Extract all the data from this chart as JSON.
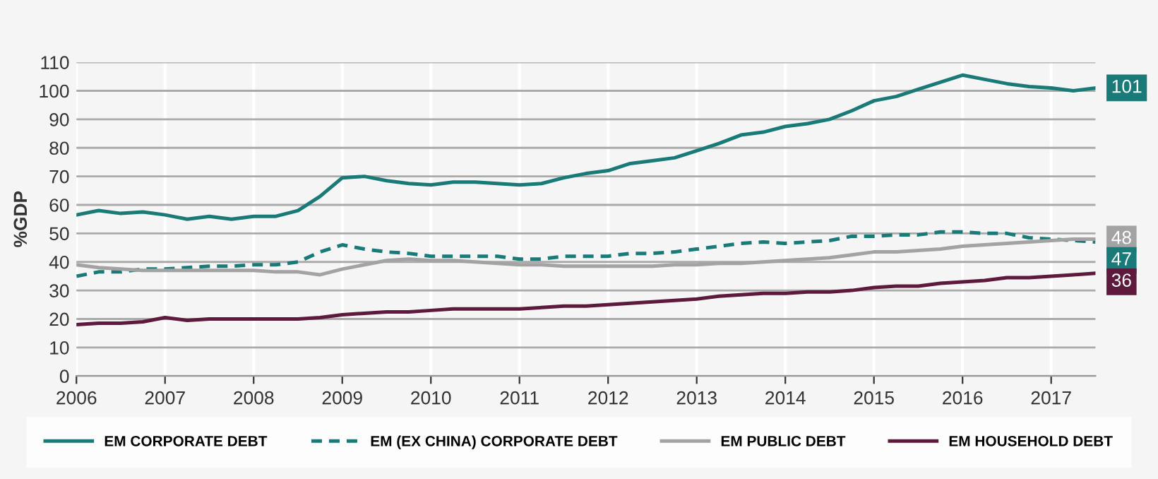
{
  "chart_data": {
    "type": "line",
    "ylabel": "%GDP",
    "x": [
      2006,
      2006.25,
      2006.5,
      2006.75,
      2007,
      2007.25,
      2007.5,
      2007.75,
      2008,
      2008.25,
      2008.5,
      2008.75,
      2009,
      2009.25,
      2009.5,
      2009.75,
      2010,
      2010.25,
      2010.5,
      2010.75,
      2011,
      2011.25,
      2011.5,
      2011.75,
      2012,
      2012.25,
      2012.5,
      2012.75,
      2013,
      2013.25,
      2013.5,
      2013.75,
      2014,
      2014.25,
      2014.5,
      2014.75,
      2015,
      2015.25,
      2015.5,
      2015.75,
      2016,
      2016.25,
      2016.5,
      2016.75,
      2017,
      2017.25,
      2017.5
    ],
    "series": [
      {
        "name": "EM CORPORATE DEBT",
        "color": "#1a7a78",
        "line_style": "solid",
        "values": [
          56.5,
          58,
          57,
          57.5,
          56.5,
          55,
          56,
          55,
          56,
          56,
          58,
          63,
          69.5,
          70,
          68.5,
          67.5,
          67,
          68,
          68,
          67.5,
          67,
          67.5,
          69.5,
          71,
          72,
          74.5,
          75.5,
          76.5,
          79,
          81.5,
          84.5,
          85.5,
          87.5,
          88.5,
          90,
          93,
          96.5,
          98,
          100.5,
          103,
          105.5,
          104,
          102.5,
          101.5,
          101,
          100,
          101
        ],
        "value_labels": [
          null,
          null,
          null,
          null,
          null,
          null,
          null,
          null,
          null,
          null,
          null,
          null,
          null,
          null,
          null,
          null,
          null,
          null,
          null,
          null,
          null,
          null,
          null,
          null,
          null,
          null,
          null,
          null,
          null,
          null,
          null,
          null,
          null,
          null,
          null,
          null,
          null,
          null,
          null,
          null,
          null,
          null,
          null,
          null,
          null,
          null,
          "101"
        ]
      },
      {
        "name": "EM (EX CHINA) CORPORATE DEBT",
        "color": "#1a7a78",
        "line_style": "dashed",
        "values": [
          35,
          36.5,
          36.5,
          37.5,
          37.5,
          38,
          38.5,
          38.5,
          39,
          39,
          40,
          43.5,
          46,
          44.5,
          43.5,
          43,
          42,
          42,
          42,
          42,
          41,
          41,
          42,
          42,
          42,
          43,
          43,
          43.5,
          44.5,
          45.5,
          46.5,
          47,
          46.5,
          47,
          47.5,
          49,
          49,
          49.5,
          49.5,
          50.5,
          50.5,
          50,
          50,
          48.5,
          48,
          47.5,
          47
        ],
        "value_labels": [
          null,
          null,
          null,
          null,
          null,
          null,
          null,
          null,
          null,
          null,
          null,
          null,
          null,
          null,
          null,
          null,
          null,
          null,
          null,
          null,
          null,
          null,
          null,
          null,
          null,
          null,
          null,
          null,
          null,
          null,
          null,
          null,
          null,
          null,
          null,
          null,
          null,
          null,
          null,
          null,
          null,
          null,
          null,
          null,
          null,
          null,
          "47"
        ]
      },
      {
        "name": "EM PUBLIC DEBT",
        "color": "#a3a3a3",
        "line_style": "solid",
        "values": [
          39,
          38,
          37.5,
          37,
          37,
          37,
          37,
          37,
          37,
          36.5,
          36.5,
          35.5,
          37.5,
          39,
          40.5,
          41,
          40.5,
          40.5,
          40,
          39.5,
          39,
          39,
          38.5,
          38.5,
          38.5,
          38.5,
          38.5,
          39,
          39,
          39.5,
          39.5,
          40,
          40.5,
          41,
          41.5,
          42.5,
          43.5,
          43.5,
          44,
          44.5,
          45.5,
          46,
          46.5,
          47,
          47.5,
          48,
          48
        ],
        "value_labels": [
          null,
          null,
          null,
          null,
          null,
          null,
          null,
          null,
          null,
          null,
          null,
          null,
          null,
          null,
          null,
          null,
          null,
          null,
          null,
          null,
          null,
          null,
          null,
          null,
          null,
          null,
          null,
          null,
          null,
          null,
          null,
          null,
          null,
          null,
          null,
          null,
          null,
          null,
          null,
          null,
          null,
          null,
          null,
          null,
          null,
          null,
          "48"
        ]
      },
      {
        "name": "EM HOUSEHOLD DEBT",
        "color": "#5e1a3c",
        "line_style": "solid",
        "values": [
          18,
          18.5,
          18.5,
          19,
          20.5,
          19.5,
          20,
          20,
          20,
          20,
          20,
          20.5,
          21.5,
          22,
          22.5,
          22.5,
          23,
          23.5,
          23.5,
          23.5,
          23.5,
          24,
          24.5,
          24.5,
          25,
          25.5,
          26,
          26.5,
          27,
          28,
          28.5,
          29,
          29,
          29.5,
          29.5,
          30,
          31,
          31.5,
          31.5,
          32.5,
          33,
          33.5,
          34.5,
          34.5,
          35,
          35.5,
          36
        ],
        "value_labels": [
          null,
          null,
          null,
          null,
          null,
          null,
          null,
          null,
          null,
          null,
          null,
          null,
          null,
          null,
          null,
          null,
          null,
          null,
          null,
          null,
          null,
          null,
          null,
          null,
          null,
          null,
          null,
          null,
          null,
          null,
          null,
          null,
          null,
          null,
          null,
          null,
          null,
          null,
          null,
          null,
          null,
          null,
          null,
          null,
          null,
          null,
          "36"
        ]
      }
    ],
    "xlim": [
      2006,
      2017.5
    ],
    "xticks": [
      2006,
      2007,
      2008,
      2009,
      2010,
      2011,
      2012,
      2013,
      2014,
      2015,
      2016,
      2017
    ],
    "ylim": [
      0,
      110
    ],
    "yticks": [
      0,
      10,
      20,
      30,
      40,
      50,
      60,
      70,
      80,
      90,
      100,
      110
    ],
    "grid": true,
    "legend": "bottom"
  }
}
